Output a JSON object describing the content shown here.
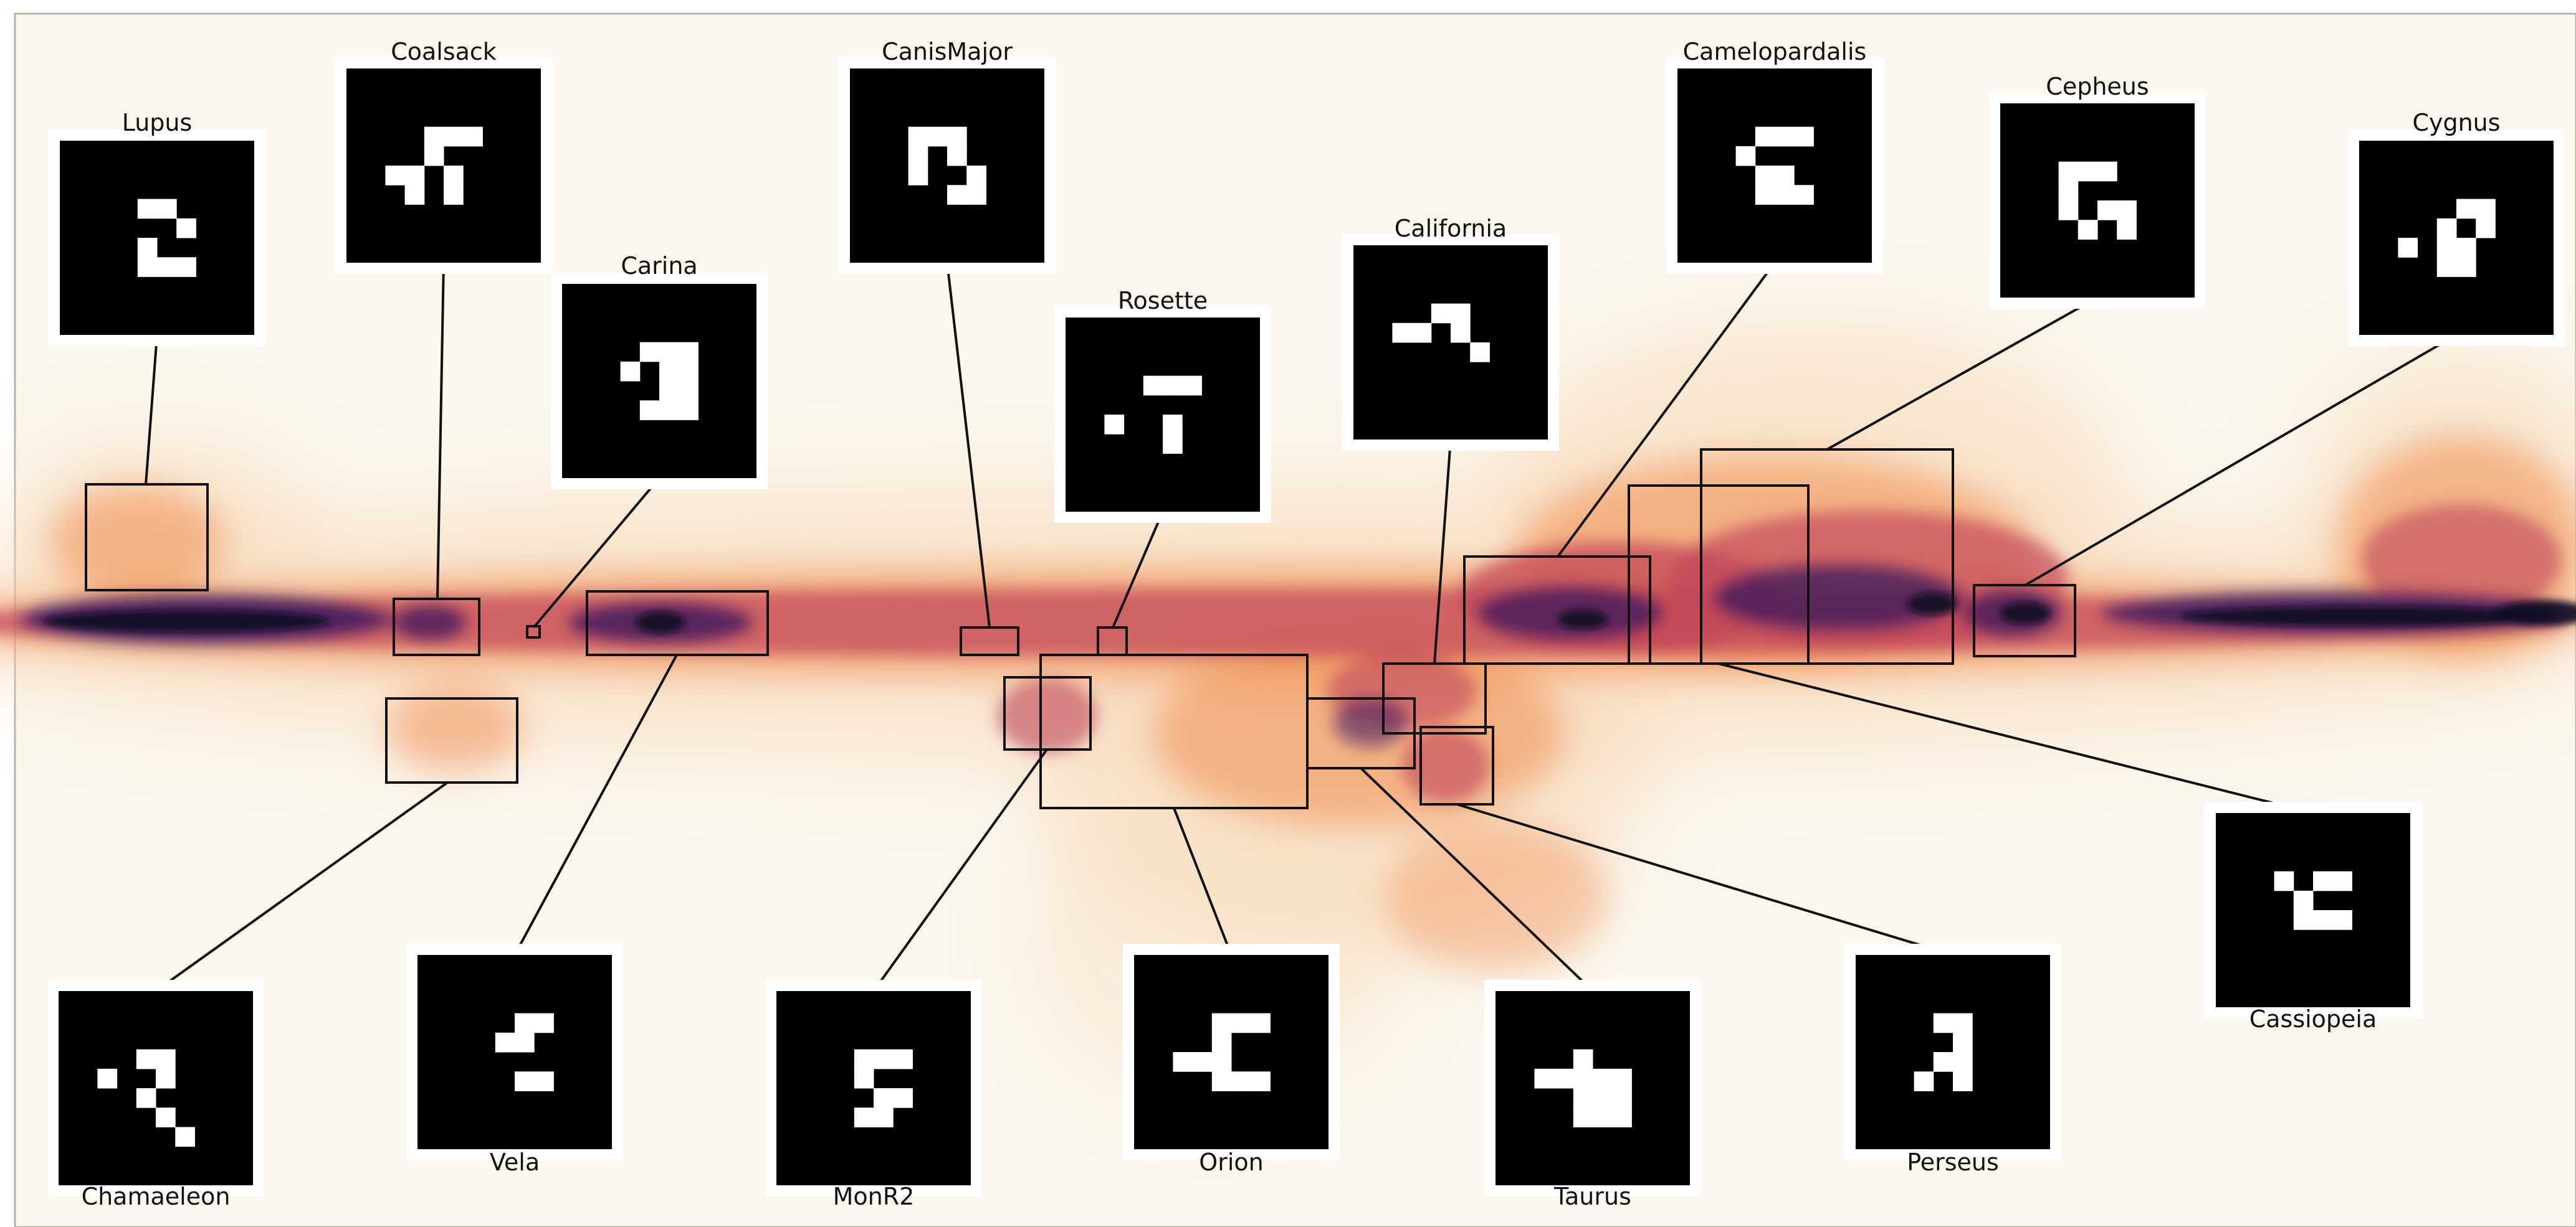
{
  "colors": {
    "background": "#fbf7ee",
    "dust_low": "#f7d9b8",
    "dust_mid": "#f08a4b",
    "dust_high": "#c0435a",
    "dust_max": "#3a1a5e",
    "dust_core": "#120a22",
    "box_stroke": "#111111",
    "thumb_bg": "#000000",
    "thumb_fg": "#ffffff",
    "thumb_frame": "#ffffff"
  },
  "regions": [
    {
      "name": "Lupus",
      "label": "Lupus",
      "pattern": [
        "......",
        "..XX..",
        "....X.",
        "..X...",
        "..XXX.",
        "......"
      ]
    },
    {
      "name": "Coalsack",
      "label": "Coalsack",
      "pattern": [
        "......",
        "..XXX.",
        "..X...",
        "XX.X..",
        ".X.X..",
        "......"
      ]
    },
    {
      "name": "Carina",
      "label": "Carina",
      "pattern": [
        "......",
        "..XXX.",
        ".X.XX.",
        "...XX.",
        "..XXX.",
        "......"
      ]
    },
    {
      "name": "CanisMajor",
      "label": "CanisMajor",
      "pattern": [
        "......",
        ".XXX..",
        ".X.X..",
        ".X..X.",
        "...XX.",
        "......"
      ]
    },
    {
      "name": "Rosette",
      "label": "Rosette",
      "pattern": [
        "......",
        "..XXX.",
        "......",
        "X..X..",
        "...X..",
        "......"
      ]
    },
    {
      "name": "California",
      "label": "California",
      "pattern": [
        "......",
        "..XX..",
        "XX.X..",
        "....X.",
        "......",
        "......"
      ]
    },
    {
      "name": "Camelopardalis",
      "label": "Camelopardalis",
      "pattern": [
        "......",
        "..XXX.",
        ".X....",
        "..XX..",
        "..XXX.",
        "......"
      ]
    },
    {
      "name": "Cepheus",
      "label": "Cepheus",
      "pattern": [
        "......",
        ".XXX..",
        ".X....",
        ".X.XX.",
        "..X.X.",
        "......"
      ]
    },
    {
      "name": "Cygnus",
      "label": "Cygnus",
      "pattern": [
        "......",
        "...XX.",
        "..X.X.",
        "X.XX..",
        "..XX..",
        "......"
      ]
    },
    {
      "name": "Chamaeleon",
      "label": "Chamaeleon",
      "pattern": [
        "......",
        "..XX..",
        "X..X..",
        "..X...",
        "...X..",
        "....X."
      ]
    },
    {
      "name": "Vela",
      "label": "Vela",
      "pattern": [
        "......",
        "...XX.",
        "..XX..",
        "......",
        "...XX.",
        "......"
      ]
    },
    {
      "name": "MonR2",
      "label": "MonR2",
      "pattern": [
        "......",
        "..XXX.",
        "..X...",
        "...XX.",
        "..XX..",
        "......"
      ]
    },
    {
      "name": "Orion",
      "label": "Orion",
      "pattern": [
        "......",
        "..XXX.",
        "..X...",
        "XXX...",
        "..XXX.",
        "......"
      ]
    },
    {
      "name": "Taurus",
      "label": "Taurus",
      "pattern": [
        "......",
        "..X...",
        "XXXXX.",
        "..XXX.",
        "..XXX.",
        "......"
      ]
    },
    {
      "name": "Perseus",
      "label": "Perseus",
      "pattern": [
        "......",
        "..XX..",
        "...X..",
        "..XX..",
        ".X.X..",
        "......"
      ]
    },
    {
      "name": "Cassiopeia",
      "label": "Cassiopeia",
      "pattern": [
        "......",
        ".X.XX.",
        "..X...",
        "..XXX.",
        "......",
        "......"
      ]
    }
  ]
}
